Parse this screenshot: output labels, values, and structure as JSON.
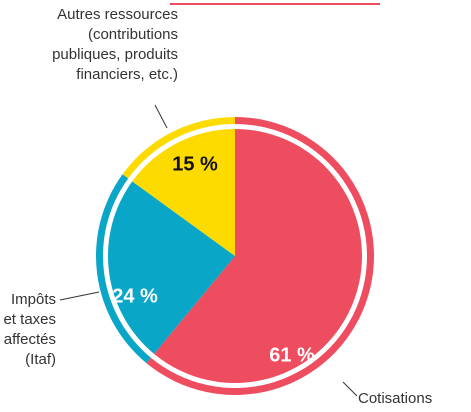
{
  "chart_data": {
    "type": "pie",
    "categories": [
      [
        "Cotisations"
      ],
      [
        "Impôts",
        "et taxes",
        "affectés",
        "(Itaf)"
      ],
      [
        "Autres ressources",
        "(contributions",
        "publiques, produits",
        "financiers, etc.)"
      ]
    ],
    "values": [
      61,
      24,
      15
    ],
    "value_labels": [
      "61 %",
      "24 %",
      "15 %"
    ],
    "colors": [
      "#ee4c5f",
      "#0aa6c8",
      "#fddb00"
    ],
    "label_colors": [
      "#ffffff",
      "#ffffff",
      "#111111"
    ]
  }
}
